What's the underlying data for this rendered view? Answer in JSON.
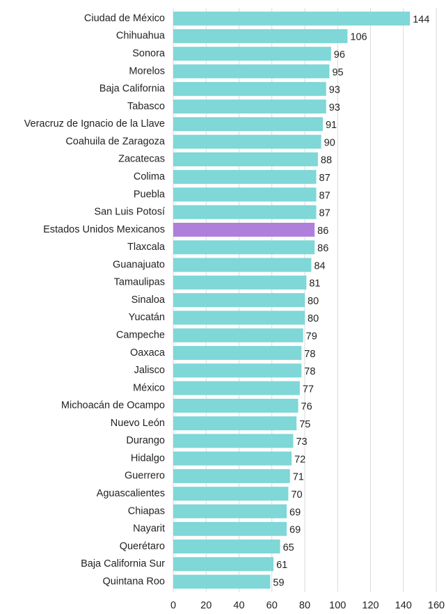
{
  "chart_data": {
    "type": "bar",
    "orientation": "horizontal",
    "categories": [
      "Ciudad de México",
      "Chihuahua",
      "Sonora",
      "Morelos",
      "Baja California",
      "Tabasco",
      "Veracruz de Ignacio de la Llave",
      "Coahuila de Zaragoza",
      "Zacatecas",
      "Colima",
      "Puebla",
      "San Luis Potosí",
      "Estados Unidos Mexicanos",
      "Tlaxcala",
      "Guanajuato",
      "Tamaulipas",
      "Sinaloa",
      "Yucatán",
      "Campeche",
      "Oaxaca",
      "Jalisco",
      "México",
      "Michoacán de Ocampo",
      "Nuevo León",
      "Durango",
      "Hidalgo",
      "Guerrero",
      "Aguascalientes",
      "Chiapas",
      "Nayarit",
      "Querétaro",
      "Baja California Sur",
      "Quintana Roo"
    ],
    "values": [
      144,
      106,
      96,
      95,
      93,
      93,
      91,
      90,
      88,
      87,
      87,
      87,
      86,
      86,
      84,
      81,
      80,
      80,
      79,
      78,
      78,
      77,
      76,
      75,
      73,
      72,
      71,
      70,
      69,
      69,
      65,
      61,
      59
    ],
    "colors": [
      "#7fd7d7",
      "#7fd7d7",
      "#7fd7d7",
      "#7fd7d7",
      "#7fd7d7",
      "#7fd7d7",
      "#7fd7d7",
      "#7fd7d7",
      "#7fd7d7",
      "#7fd7d7",
      "#7fd7d7",
      "#7fd7d7",
      "#b07fdc",
      "#7fd7d7",
      "#7fd7d7",
      "#7fd7d7",
      "#7fd7d7",
      "#7fd7d7",
      "#7fd7d7",
      "#7fd7d7",
      "#7fd7d7",
      "#7fd7d7",
      "#7fd7d7",
      "#7fd7d7",
      "#7fd7d7",
      "#7fd7d7",
      "#7fd7d7",
      "#7fd7d7",
      "#7fd7d7",
      "#7fd7d7",
      "#7fd7d7",
      "#7fd7d7",
      "#7fd7d7"
    ],
    "xlim": [
      0,
      160
    ],
    "xticks": [
      0,
      20,
      40,
      60,
      80,
      100,
      120,
      140,
      160
    ],
    "grid": true
  }
}
